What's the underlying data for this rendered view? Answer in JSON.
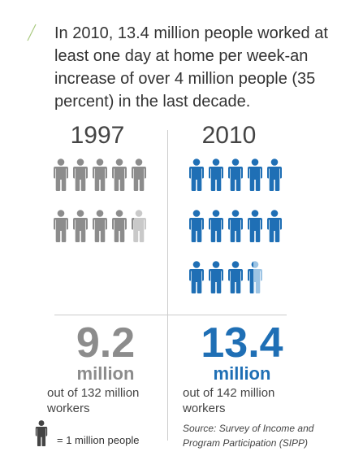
{
  "headline": "In 2010, 13.4 million people worked at least one day at home per week-an increase of over 4 million people (35 percent) in the last decade.",
  "chart_data": {
    "type": "pictogram",
    "unit_value": 1,
    "series": [
      {
        "name": "1997",
        "value": 9.2,
        "big_value": "9.2",
        "big_unit": "million",
        "out_of": "out of 132 million workers",
        "color": "#8c8c8c",
        "partial_color": "#c9c9c9"
      },
      {
        "name": "2010",
        "value": 13.4,
        "big_value": "13.4",
        "big_unit": "million",
        "out_of": "out of 142 million workers",
        "color": "#1f6fb5",
        "partial_color": "#9cc4e4"
      }
    ]
  },
  "legend": {
    "label": "= 1 million people",
    "icon": "person-icon",
    "color": "#444444"
  },
  "source": "Source: Survey of Income and Program Participation (SIPP)",
  "colors": {
    "accent_decoration": "#a8c97f"
  }
}
